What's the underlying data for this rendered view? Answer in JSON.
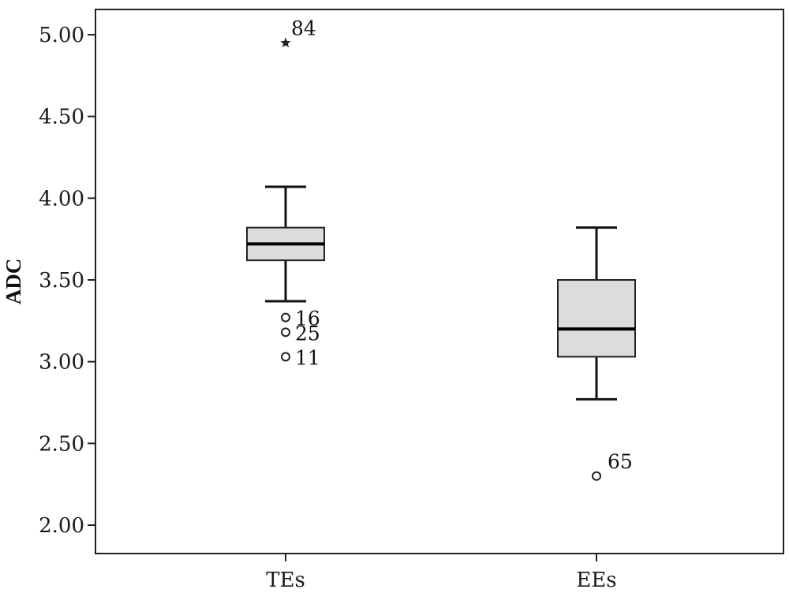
{
  "chart_data": {
    "type": "box",
    "title": "",
    "xlabel": "",
    "ylabel": "ADC",
    "ylim": [
      1.85,
      5.15
    ],
    "yticks": [
      "2.00",
      "2.50",
      "3.00",
      "3.50",
      "4.00",
      "4.50",
      "5.00"
    ],
    "ytick_values": [
      2.0,
      2.5,
      3.0,
      3.5,
      4.0,
      4.5,
      5.0
    ],
    "grid": false,
    "box_fill": "#dcdcdc",
    "categories": [
      "TEs",
      "EEs"
    ],
    "boxes": [
      {
        "category": "TEs",
        "whisker_low": 3.37,
        "q1": 3.62,
        "median": 3.72,
        "q3": 3.82,
        "whisker_high": 4.07,
        "outliers": [
          {
            "value": 3.27,
            "label": "16",
            "marker": "circle"
          },
          {
            "value": 3.18,
            "label": "25",
            "marker": "circle"
          },
          {
            "value": 3.03,
            "label": "11",
            "marker": "circle"
          },
          {
            "value": 4.95,
            "label": "84",
            "marker": "star"
          }
        ]
      },
      {
        "category": "EEs",
        "whisker_low": 2.77,
        "q1": 3.03,
        "median": 3.2,
        "q3": 3.5,
        "whisker_high": 3.82,
        "outliers": [
          {
            "value": 2.3,
            "label": "65",
            "marker": "circle"
          }
        ]
      }
    ]
  }
}
